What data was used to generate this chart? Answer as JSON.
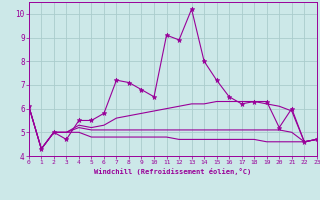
{
  "xlabel": "Windchill (Refroidissement éolien,°C)",
  "background_color": "#cce8e8",
  "grid_color": "#aacccc",
  "line_color": "#990099",
  "ylim": [
    4,
    10.5
  ],
  "xlim": [
    0,
    23
  ],
  "yticks": [
    4,
    5,
    6,
    7,
    8,
    9,
    10
  ],
  "xticks": [
    0,
    1,
    2,
    3,
    4,
    5,
    6,
    7,
    8,
    9,
    10,
    11,
    12,
    13,
    14,
    15,
    16,
    17,
    18,
    19,
    20,
    21,
    22,
    23
  ],
  "series": {
    "line1_x": [
      0,
      1,
      2,
      3,
      4,
      5,
      6,
      7,
      8,
      9,
      10,
      11,
      12,
      13,
      14,
      15,
      16,
      17,
      18,
      19,
      20,
      21,
      22,
      23
    ],
    "line1_y": [
      6.1,
      4.3,
      5.0,
      4.7,
      5.5,
      5.5,
      5.8,
      7.2,
      7.1,
      6.8,
      6.5,
      9.1,
      8.9,
      10.2,
      8.0,
      7.2,
      6.5,
      6.2,
      6.3,
      6.3,
      5.2,
      6.0,
      4.6,
      4.7
    ],
    "line2_x": [
      0,
      1,
      2,
      3,
      4,
      5,
      6,
      7,
      8,
      9,
      10,
      11,
      12,
      13,
      14,
      15,
      16,
      17,
      18,
      19,
      20,
      21,
      22,
      23
    ],
    "line2_y": [
      6.1,
      4.3,
      5.0,
      5.0,
      5.3,
      5.2,
      5.3,
      5.6,
      5.7,
      5.8,
      5.9,
      6.0,
      6.1,
      6.2,
      6.2,
      6.3,
      6.3,
      6.3,
      6.3,
      6.2,
      6.1,
      5.9,
      4.6,
      4.7
    ],
    "line3_x": [
      0,
      1,
      2,
      3,
      4,
      5,
      6,
      7,
      8,
      9,
      10,
      11,
      12,
      13,
      14,
      15,
      16,
      17,
      18,
      19,
      20,
      21,
      22,
      23
    ],
    "line3_y": [
      6.1,
      4.3,
      5.0,
      5.0,
      5.2,
      5.1,
      5.1,
      5.1,
      5.1,
      5.1,
      5.1,
      5.1,
      5.1,
      5.1,
      5.1,
      5.1,
      5.1,
      5.1,
      5.1,
      5.1,
      5.1,
      5.0,
      4.6,
      4.7
    ],
    "line4_x": [
      0,
      1,
      2,
      3,
      4,
      5,
      6,
      7,
      8,
      9,
      10,
      11,
      12,
      13,
      14,
      15,
      16,
      17,
      18,
      19,
      20,
      21,
      22,
      23
    ],
    "line4_y": [
      6.1,
      4.3,
      5.0,
      5.0,
      5.0,
      4.8,
      4.8,
      4.8,
      4.8,
      4.8,
      4.8,
      4.8,
      4.7,
      4.7,
      4.7,
      4.7,
      4.7,
      4.7,
      4.7,
      4.6,
      4.6,
      4.6,
      4.6,
      4.7
    ]
  }
}
